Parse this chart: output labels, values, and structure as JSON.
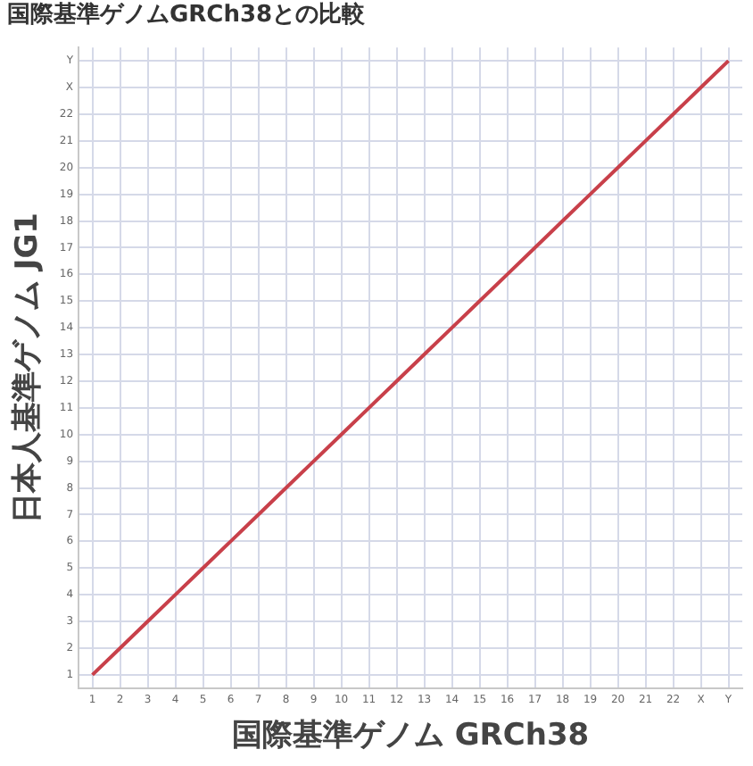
{
  "chart_data": {
    "type": "line",
    "title": "国際基準ゲノムGRCh38との比較",
    "xlabel": "国際基準ゲノム GRCh38",
    "ylabel": "日本人基準ゲノム JG1",
    "x": [
      1,
      2,
      3,
      4,
      5,
      6,
      7,
      8,
      9,
      10,
      11,
      12,
      13,
      14,
      15,
      16,
      17,
      18,
      19,
      20,
      21,
      22,
      23,
      24
    ],
    "series": [
      {
        "color": "#c8404a",
        "values": [
          1,
          2,
          3,
          4,
          5,
          6,
          7,
          8,
          9,
          10,
          11,
          12,
          13,
          14,
          15,
          16,
          17,
          18,
          19,
          20,
          21,
          22,
          23,
          24
        ]
      }
    ],
    "xlim": [
      0.5,
      24.5
    ],
    "ylim": [
      0.5,
      24.5
    ],
    "xticks": [
      1,
      2,
      3,
      4,
      5,
      6,
      7,
      8,
      9,
      10,
      11,
      12,
      13,
      14,
      15,
      16,
      17,
      18,
      19,
      20,
      21,
      22,
      {
        "value": 23,
        "label": "X"
      },
      {
        "value": 24,
        "label": "Y"
      }
    ],
    "yticks": [
      1,
      2,
      3,
      4,
      5,
      6,
      7,
      8,
      9,
      10,
      11,
      12,
      13,
      14,
      15,
      16,
      17,
      18,
      19,
      20,
      21,
      22,
      {
        "value": 23,
        "label": "X"
      },
      {
        "value": 24,
        "label": "Y"
      }
    ],
    "grid": true,
    "marker": "none",
    "line_style": "solid",
    "legend": false
  }
}
